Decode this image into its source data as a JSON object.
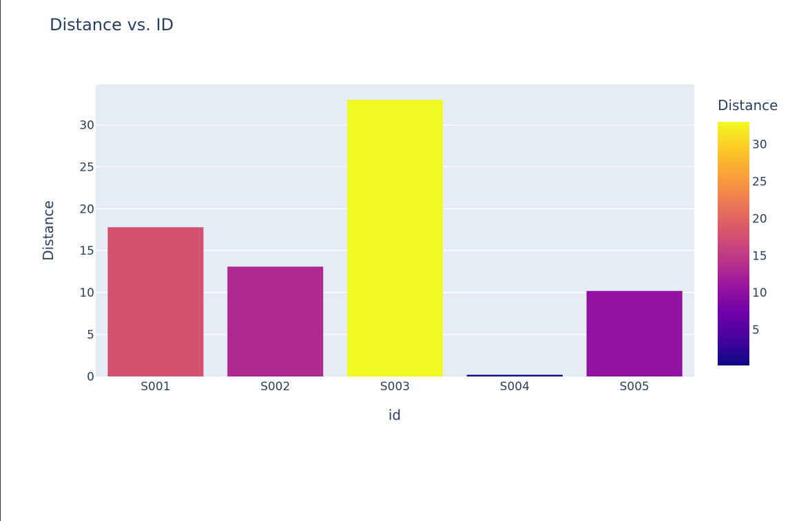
{
  "chart_data": {
    "type": "bar",
    "title": "Distance vs. ID",
    "xlabel": "id",
    "ylabel": "Distance",
    "categories": [
      "S001",
      "S002",
      "S003",
      "S004",
      "S005"
    ],
    "values": [
      17.8,
      13.1,
      33.0,
      0.2,
      10.2
    ],
    "ylim": [
      0,
      34.8
    ],
    "yticks": [
      0,
      5,
      10,
      15,
      20,
      25,
      30
    ],
    "grid": true,
    "plot_background": "#e5ecf6",
    "colorbar": {
      "title": "Distance",
      "range": [
        0.2,
        33.0
      ],
      "ticks": [
        5,
        10,
        15,
        20,
        25,
        30
      ],
      "colorscale": [
        "#0d0887",
        "#46039f",
        "#7201a8",
        "#9c179e",
        "#bd3786",
        "#d8576b",
        "#ed7953",
        "#fb9f3a",
        "#fdca26",
        "#f0f921"
      ]
    }
  }
}
